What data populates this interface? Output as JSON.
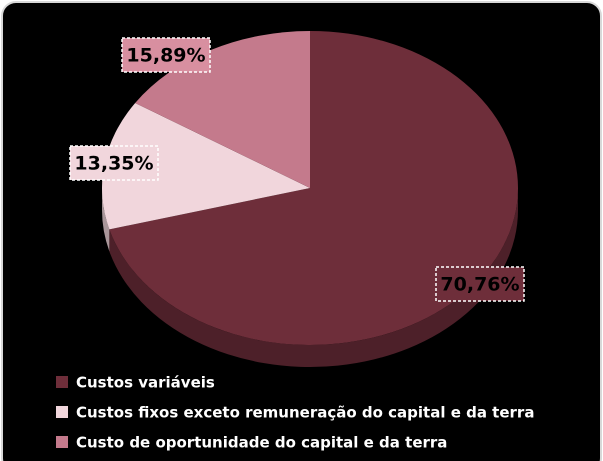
{
  "chart_data": {
    "type": "pie",
    "categories": [
      "Custos variáveis",
      "Custos fixos exceto remuneração do capital e da terra",
      "Custo de oportunidade do capital e da terra"
    ],
    "values": [
      70.76,
      13.35,
      15.89
    ],
    "value_labels": [
      "70,76%",
      "13,35%",
      "15,89%"
    ],
    "colors": [
      "#6e2e3a",
      "#f1d6dc",
      "#c47a8c"
    ],
    "legend": "bottom"
  }
}
